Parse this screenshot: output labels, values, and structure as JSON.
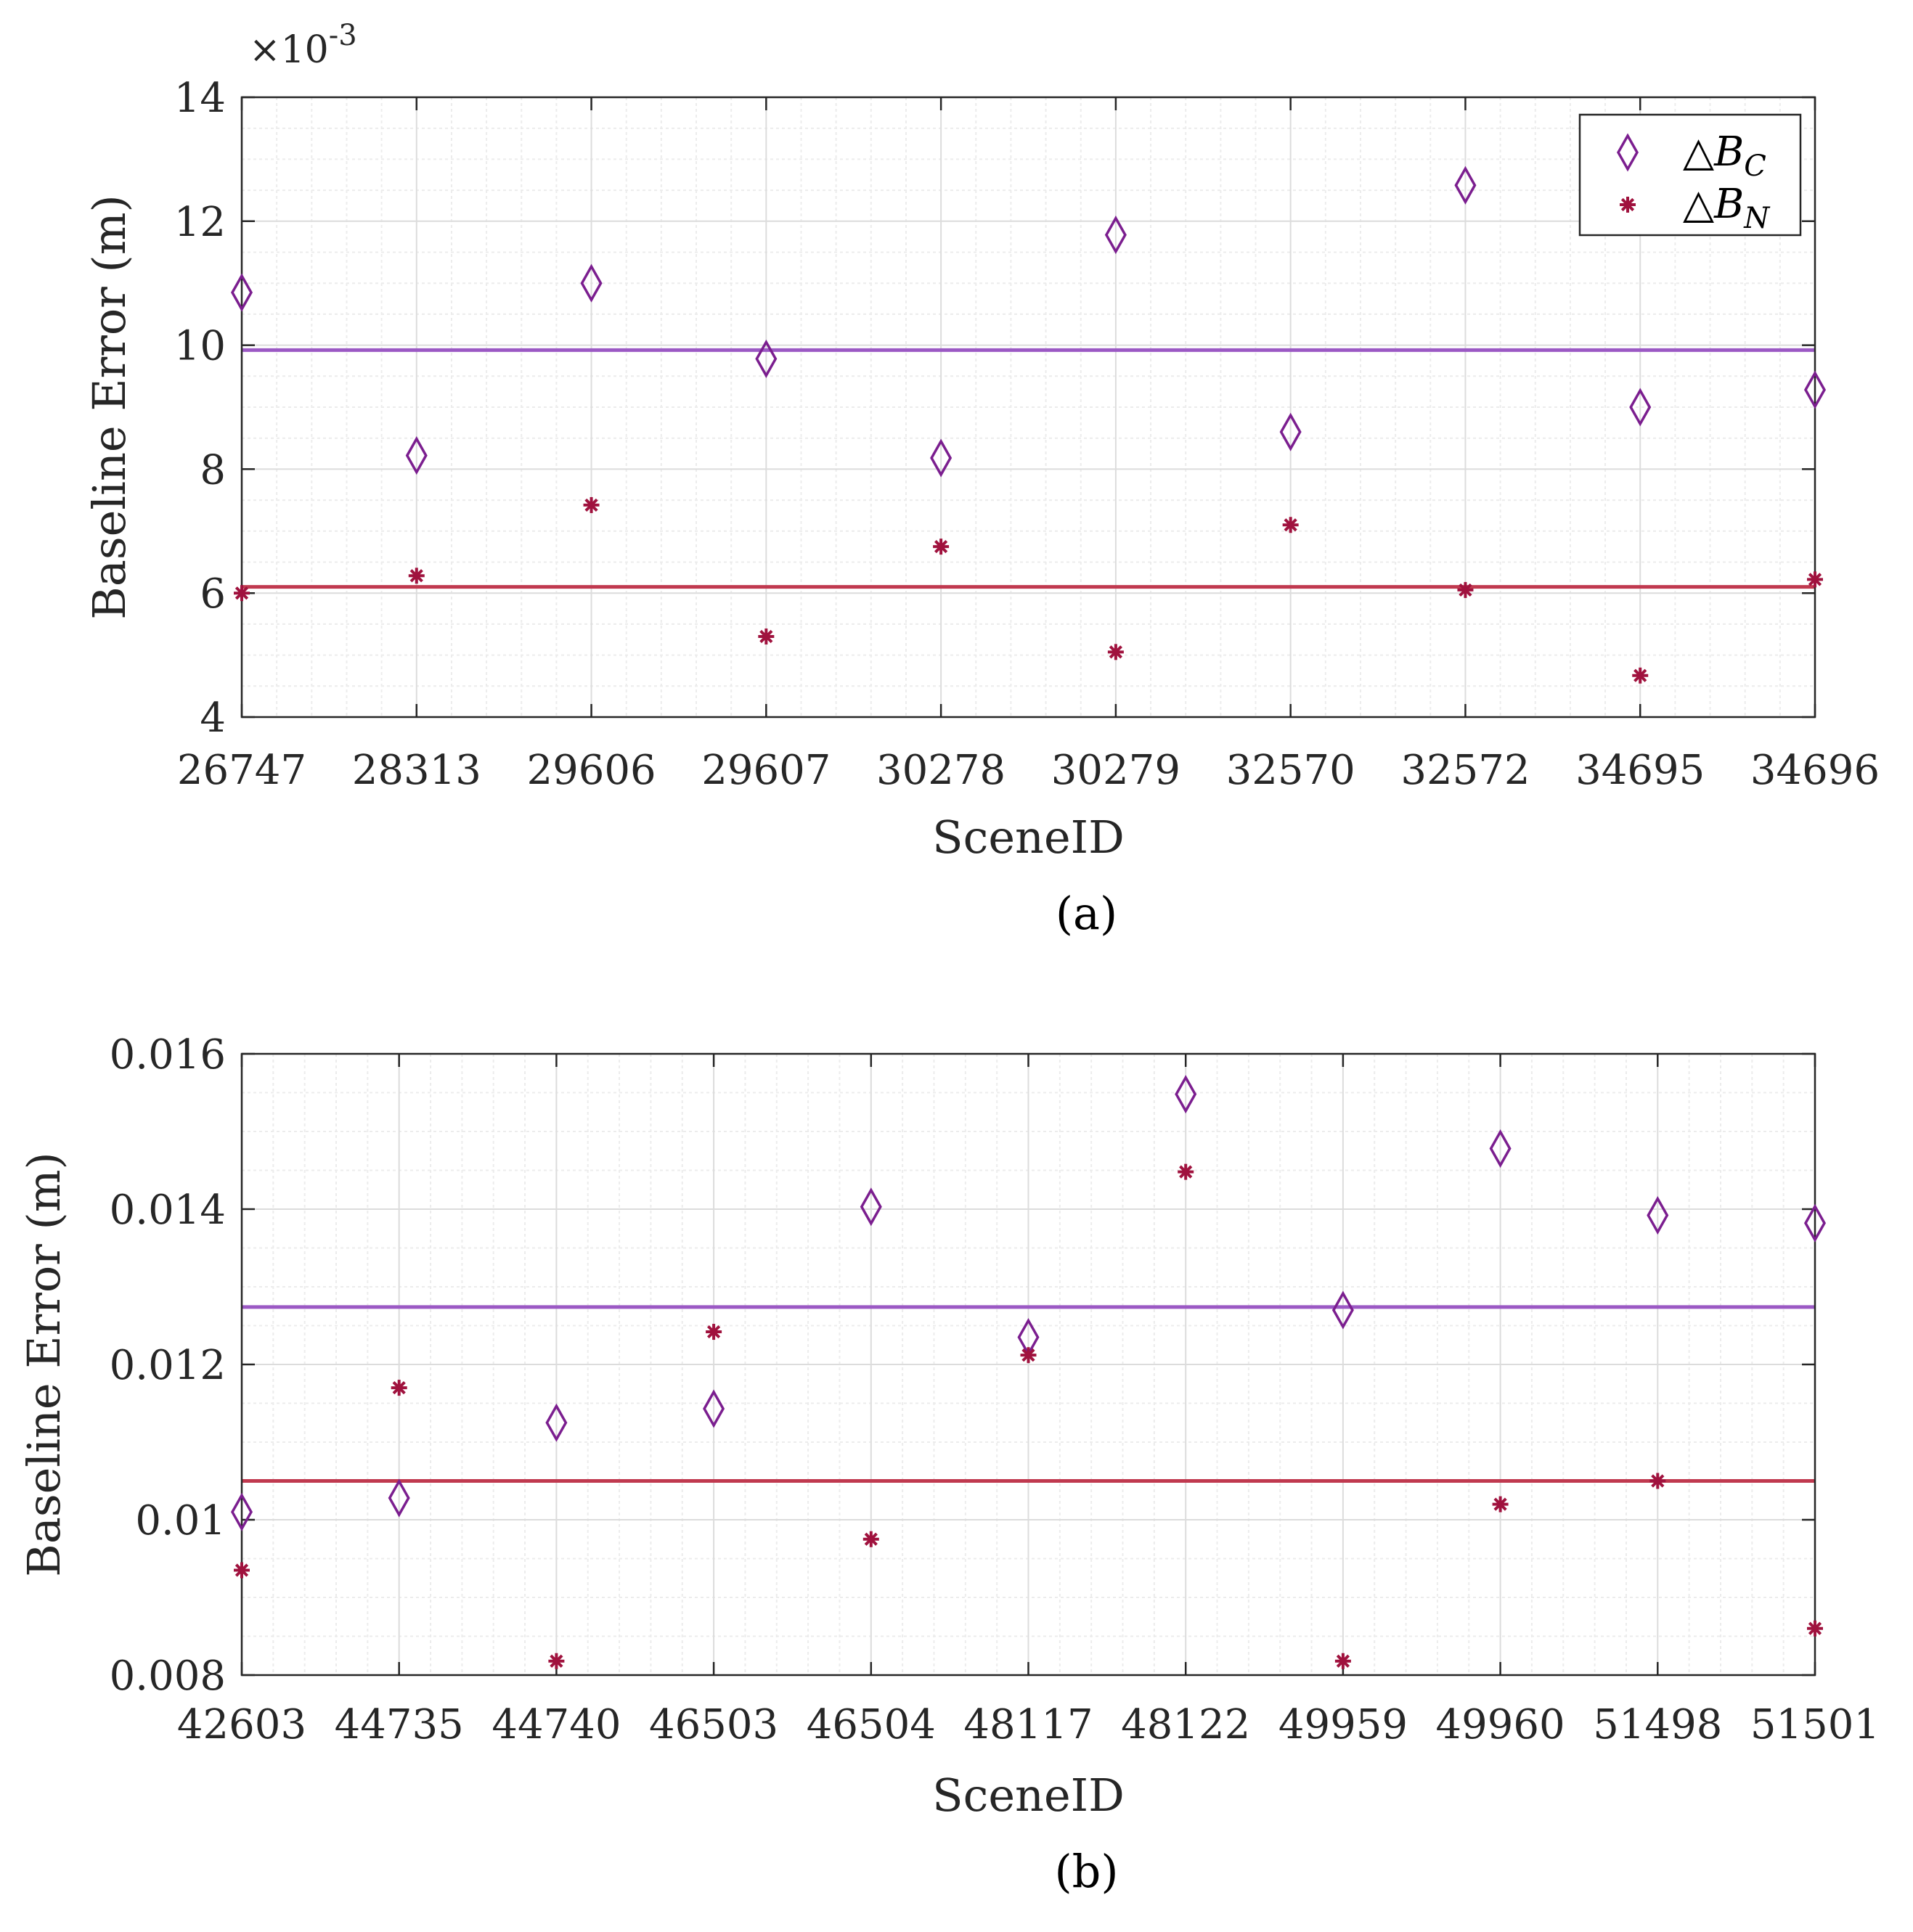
{
  "colors": {
    "bc": "#7B1E8F",
    "bn": "#A0123E",
    "bc_mean_line": "#9B59C4",
    "bn_mean_line": "#C0394F",
    "grid": "#dcdcdc",
    "axis": "#262626"
  },
  "chart_data": [
    {
      "type": "scatter",
      "panel": "(a)",
      "caption": "(a)",
      "xlabel": "SceneID",
      "ylabel": "Baseline Error (m)",
      "exponent_label": "×10",
      "exponent_power": "-3",
      "categories": [
        "26747",
        "28313",
        "29606",
        "29607",
        "30278",
        "30279",
        "32570",
        "32572",
        "34695",
        "34696"
      ],
      "ylim": [
        0.004,
        0.014
      ],
      "yticks": [
        0.004,
        0.006,
        0.008,
        0.01,
        0.012,
        0.014
      ],
      "ytick_labels": [
        "4",
        "6",
        "8",
        "10",
        "12",
        "14"
      ],
      "grid": true,
      "minor_grid": true,
      "legend": {
        "placement": "top-right",
        "entries": [
          "△B_C",
          "△B_N"
        ],
        "labels": [
          "△B",
          "△B"
        ],
        "subscripts": [
          "C",
          "N"
        ]
      },
      "series": [
        {
          "name": "△B_C",
          "marker": "diamond",
          "values": [
            0.01085,
            0.00822,
            0.011,
            0.00978,
            0.00818,
            0.01178,
            0.0086,
            0.01258,
            0.009,
            0.00928
          ]
        },
        {
          "name": "△B_N",
          "marker": "asterisk",
          "values": [
            0.006,
            0.00628,
            0.00742,
            0.0053,
            0.00675,
            0.00505,
            0.0071,
            0.00605,
            0.00467,
            0.00622
          ]
        }
      ],
      "mean_lines": [
        {
          "name": "△B_C mean",
          "value": 0.00992
        },
        {
          "name": "△B_N mean",
          "value": 0.0061
        }
      ]
    },
    {
      "type": "scatter",
      "panel": "(b)",
      "caption": "(b)",
      "xlabel": "SceneID",
      "ylabel": "Baseline Error (m)",
      "categories": [
        "42603",
        "44735",
        "44740",
        "46503",
        "46504",
        "48117",
        "48122",
        "49959",
        "49960",
        "51498",
        "51501"
      ],
      "ylim": [
        0.008,
        0.016
      ],
      "yticks": [
        0.008,
        0.01,
        0.012,
        0.014,
        0.016
      ],
      "ytick_labels": [
        "0.008",
        "0.01",
        "0.012",
        "0.014",
        "0.016"
      ],
      "grid": true,
      "minor_grid": true,
      "series": [
        {
          "name": "△B_C",
          "marker": "diamond",
          "values": [
            0.0101,
            0.01028,
            0.01125,
            0.01143,
            0.01403,
            0.01235,
            0.01548,
            0.0127,
            0.01478,
            0.01392,
            0.01382
          ]
        },
        {
          "name": "△B_N",
          "marker": "asterisk",
          "values": [
            0.00935,
            0.0117,
            0.00818,
            0.01242,
            0.00975,
            0.01212,
            0.01448,
            0.00818,
            0.0102,
            0.0105,
            0.0086
          ]
        }
      ],
      "mean_lines": [
        {
          "name": "△B_C mean",
          "value": 0.01274
        },
        {
          "name": "△B_N mean",
          "value": 0.0105
        }
      ]
    }
  ]
}
